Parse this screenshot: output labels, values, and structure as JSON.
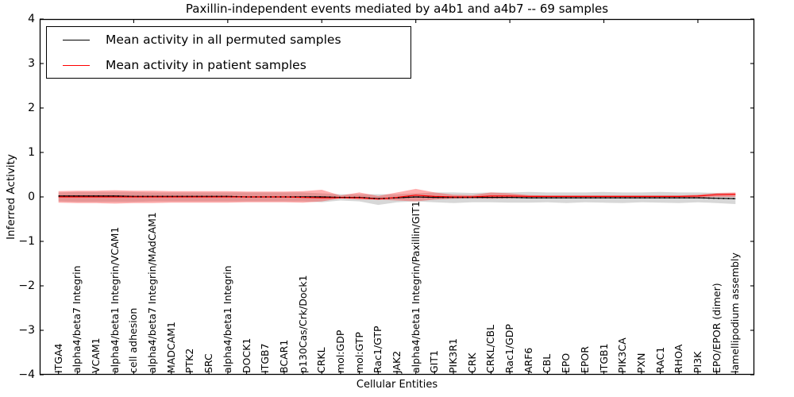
{
  "figure": {
    "background": "#ffffff"
  },
  "legend": {
    "items": [
      {
        "label": "Mean activity in all permuted samples",
        "color": "#000000"
      },
      {
        "label": "Mean activity in patient samples",
        "color": "#ff0000"
      }
    ]
  },
  "chart_data": {
    "type": "line",
    "title": "Paxillin-independent events mediated by a4b1 and a4b7 -- 69 samples",
    "xlabel": "Cellular Entities",
    "ylabel": "Inferred Activity",
    "ylim": [
      -4,
      4
    ],
    "xlim": [
      0,
      38
    ],
    "ytick_labels": [
      "4",
      "3",
      "2",
      "1",
      "0",
      "−1",
      "−2",
      "−3",
      "−4"
    ],
    "ytick_values": [
      4,
      3,
      2,
      1,
      0,
      -1,
      -2,
      -3,
      -4
    ],
    "top_axis_tick_values": [
      5,
      10,
      15,
      20,
      25,
      30,
      35
    ],
    "grid": false,
    "legend_position": "upper left",
    "categories": [
      "ITGA4",
      "alpha4/beta7 Integrin",
      "VCAM1",
      "alpha4/beta1 Integrin/VCAM1",
      "cell adhesion",
      "alpha4/beta7 Integrin/MAdCAM1",
      "MADCAM1",
      "PTK2",
      "SRC",
      "alpha4/beta1 Integrin",
      "DOCK1",
      "ITGB7",
      "BCAR1",
      "p130Cas/Crk/Dock1",
      "CRKL",
      "mol:GDP",
      "mol:GTP",
      "Rac1/GTP",
      "JAK2",
      "alpha4/beta1 Integrin/Paxillin/GIT1",
      "GIT1",
      "PIK3R1",
      "CRK",
      "CRKL/CBL",
      "Rac1/GDP",
      "ARF6",
      "CBL",
      "EPO",
      "EPOR",
      "ITGB1",
      "PIK3CA",
      "PXN",
      "RAC1",
      "RHOA",
      "PI3K",
      "EPO/EPOR (dimer)",
      "lamellipodium assembly"
    ],
    "series": [
      {
        "name": "Mean activity in all permuted samples",
        "color": "#000000",
        "values": [
          0.02,
          0.02,
          0.02,
          0.02,
          0.01,
          0.01,
          0.01,
          0.01,
          0.01,
          0.01,
          0.0,
          0.0,
          0.0,
          0.0,
          0.0,
          -0.01,
          -0.01,
          -0.04,
          -0.02,
          0.0,
          -0.01,
          -0.01,
          -0.01,
          -0.01,
          -0.01,
          -0.02,
          -0.02,
          -0.02,
          -0.02,
          -0.02,
          -0.02,
          -0.02,
          -0.02,
          -0.02,
          -0.02,
          -0.03,
          -0.04
        ]
      },
      {
        "name": "Mean activity in patient samples",
        "color": "#ff0000",
        "values": [
          0.0,
          0.0,
          0.0,
          0.0,
          0.0,
          0.0,
          0.0,
          0.0,
          0.0,
          0.0,
          0.0,
          0.0,
          0.0,
          -0.01,
          -0.02,
          -0.02,
          -0.02,
          -0.05,
          -0.01,
          0.04,
          0.01,
          0.0,
          0.0,
          0.02,
          0.02,
          0.01,
          0.01,
          0.01,
          0.01,
          0.01,
          0.01,
          0.01,
          0.01,
          0.01,
          0.02,
          0.05,
          0.06
        ]
      }
    ],
    "bands": [
      {
        "name": "permuted samples range",
        "color": "#8c8c8c",
        "opacity": 0.35,
        "upper": [
          0.1,
          0.11,
          0.11,
          0.11,
          0.11,
          0.1,
          0.1,
          0.1,
          0.1,
          0.1,
          0.1,
          0.1,
          0.1,
          0.1,
          0.08,
          0.06,
          0.06,
          0.06,
          0.06,
          0.08,
          0.1,
          0.1,
          0.09,
          0.1,
          0.1,
          0.11,
          0.1,
          0.1,
          0.1,
          0.11,
          0.1,
          0.1,
          0.11,
          0.1,
          0.1,
          0.09,
          0.08
        ],
        "lower": [
          -0.1,
          -0.11,
          -0.11,
          -0.11,
          -0.11,
          -0.1,
          -0.1,
          -0.1,
          -0.1,
          -0.1,
          -0.1,
          -0.1,
          -0.1,
          -0.1,
          -0.12,
          -0.08,
          -0.1,
          -0.18,
          -0.12,
          -0.1,
          -0.12,
          -0.14,
          -0.12,
          -0.12,
          -0.13,
          -0.13,
          -0.12,
          -0.14,
          -0.12,
          -0.13,
          -0.14,
          -0.12,
          -0.13,
          -0.14,
          -0.12,
          -0.14,
          -0.16
        ]
      },
      {
        "name": "patient samples range",
        "color": "#ff2a2a",
        "opacity": 0.38,
        "upper": [
          0.13,
          0.14,
          0.14,
          0.15,
          0.14,
          0.14,
          0.13,
          0.13,
          0.13,
          0.13,
          0.12,
          0.12,
          0.12,
          0.13,
          0.16,
          0.03,
          0.1,
          0.02,
          0.1,
          0.18,
          0.1,
          0.05,
          0.04,
          0.1,
          0.08,
          0.04,
          0.03,
          0.03,
          0.03,
          0.03,
          0.03,
          0.03,
          0.03,
          0.03,
          0.05,
          0.09,
          0.1
        ],
        "lower": [
          -0.13,
          -0.14,
          -0.14,
          -0.15,
          -0.14,
          -0.14,
          -0.13,
          -0.13,
          -0.13,
          -0.13,
          -0.12,
          -0.12,
          -0.12,
          -0.13,
          -0.1,
          -0.03,
          -0.06,
          -0.06,
          -0.08,
          -0.1,
          -0.06,
          -0.04,
          -0.03,
          -0.04,
          -0.03,
          -0.02,
          -0.02,
          -0.02,
          -0.02,
          -0.02,
          -0.02,
          -0.02,
          -0.02,
          -0.02,
          -0.01,
          0.0,
          0.0
        ]
      }
    ]
  }
}
